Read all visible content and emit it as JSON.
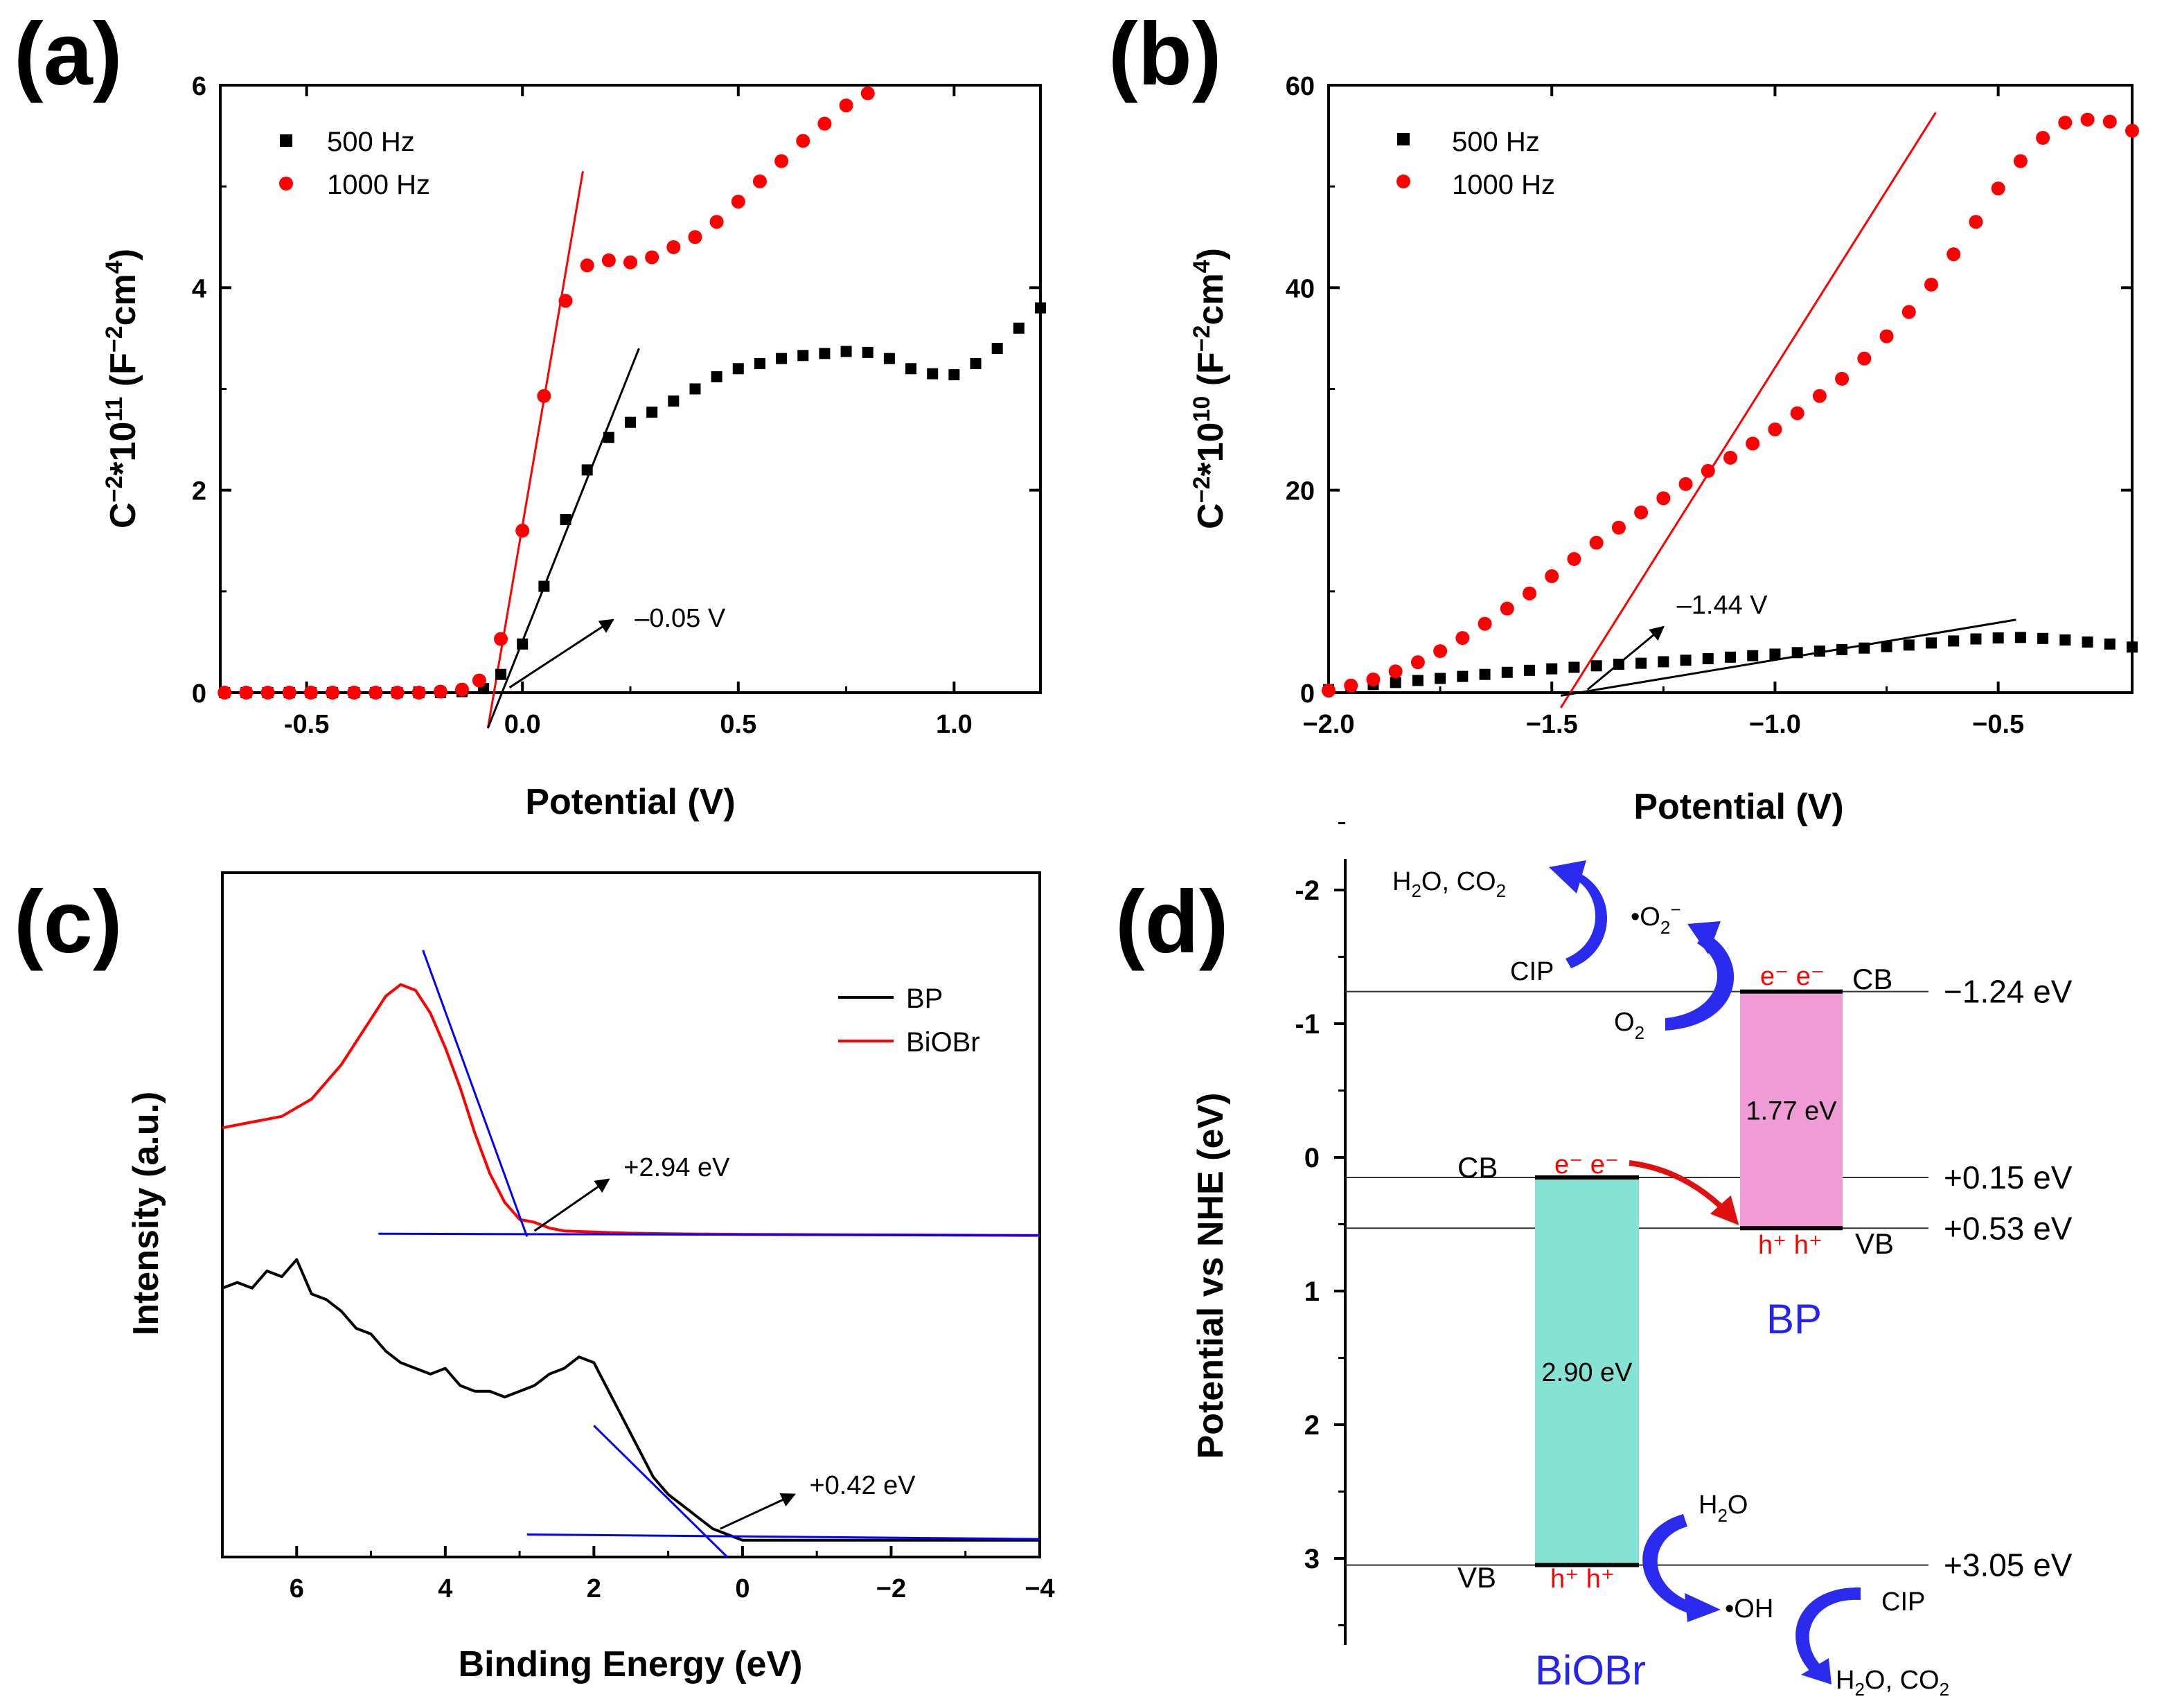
{
  "chart_data": [
    {
      "panel": "(a)",
      "type": "scatter",
      "title": "",
      "xlabel": "Potential (V)",
      "ylabel_parts": [
        "C",
        "−2",
        "*10",
        "11",
        " (F",
        "−2",
        "cm",
        "4",
        ")"
      ],
      "xlim": [
        -0.7,
        1.2
      ],
      "ylim": [
        0,
        6
      ],
      "xticks": [
        -0.5,
        0.0,
        0.5,
        1.0
      ],
      "xtick_labels": [
        "-0.5",
        "0.0",
        "0.5",
        "1.0"
      ],
      "yticks": [
        0,
        2,
        4,
        6
      ],
      "ytick_labels": [
        "0",
        "2",
        "4",
        "6"
      ],
      "legend_position": "top-left",
      "series": [
        {
          "name": "500 Hz",
          "marker": "square",
          "color": "#000000",
          "points": [
            [
              -0.69,
              0.0
            ],
            [
              -0.64,
              0.0
            ],
            [
              -0.59,
              0.0
            ],
            [
              -0.54,
              0.0
            ],
            [
              -0.49,
              0.0
            ],
            [
              -0.44,
              0.0
            ],
            [
              -0.39,
              0.0
            ],
            [
              -0.34,
              0.0
            ],
            [
              -0.29,
              0.0
            ],
            [
              -0.24,
              0.0
            ],
            [
              -0.19,
              0.0
            ],
            [
              -0.14,
              0.01
            ],
            [
              -0.09,
              0.04
            ],
            [
              -0.05,
              0.18
            ],
            [
              0.0,
              0.48
            ],
            [
              0.05,
              1.05
            ],
            [
              0.1,
              1.71
            ],
            [
              0.15,
              2.2
            ],
            [
              0.2,
              2.52
            ],
            [
              0.25,
              2.67
            ],
            [
              0.3,
              2.77
            ],
            [
              0.35,
              2.88
            ],
            [
              0.4,
              3.0
            ],
            [
              0.45,
              3.12
            ],
            [
              0.5,
              3.2
            ],
            [
              0.55,
              3.25
            ],
            [
              0.6,
              3.3
            ],
            [
              0.65,
              3.33
            ],
            [
              0.7,
              3.35
            ],
            [
              0.75,
              3.37
            ],
            [
              0.8,
              3.36
            ],
            [
              0.85,
              3.3
            ],
            [
              0.9,
              3.2
            ],
            [
              0.95,
              3.15
            ],
            [
              1.0,
              3.14
            ],
            [
              1.05,
              3.25
            ],
            [
              1.1,
              3.4
            ],
            [
              1.15,
              3.6
            ],
            [
              1.2,
              3.8
            ]
          ]
        },
        {
          "name": "1000 Hz",
          "marker": "circle",
          "color": "#ff0000",
          "points": [
            [
              -0.69,
              0.0
            ],
            [
              -0.64,
              0.0
            ],
            [
              -0.59,
              0.0
            ],
            [
              -0.54,
              0.0
            ],
            [
              -0.49,
              0.0
            ],
            [
              -0.44,
              0.0
            ],
            [
              -0.39,
              0.0
            ],
            [
              -0.34,
              0.0
            ],
            [
              -0.29,
              0.0
            ],
            [
              -0.24,
              0.0
            ],
            [
              -0.19,
              0.01
            ],
            [
              -0.14,
              0.03
            ],
            [
              -0.1,
              0.12
            ],
            [
              -0.05,
              0.53
            ],
            [
              0.0,
              1.6
            ],
            [
              0.05,
              2.93
            ],
            [
              0.1,
              3.87
            ],
            [
              0.15,
              4.22
            ],
            [
              0.2,
              4.27
            ],
            [
              0.25,
              4.25
            ],
            [
              0.3,
              4.3
            ],
            [
              0.35,
              4.4
            ],
            [
              0.4,
              4.5
            ],
            [
              0.45,
              4.65
            ],
            [
              0.5,
              4.85
            ],
            [
              0.55,
              5.05
            ],
            [
              0.6,
              5.25
            ],
            [
              0.65,
              5.45
            ],
            [
              0.7,
              5.62
            ],
            [
              0.75,
              5.8
            ],
            [
              0.8,
              5.92
            ]
          ]
        }
      ],
      "fit_lines": [
        {
          "color": "#ff0000",
          "x": [
            -0.08,
            0.14
          ],
          "y": [
            -0.35,
            5.15
          ]
        },
        {
          "color": "#000000",
          "x": [
            -0.08,
            0.27
          ],
          "y": [
            -0.35,
            3.4
          ]
        }
      ],
      "annotation": {
        "text": "–0.05 V",
        "arrow_from": [
          -0.03,
          0.05
        ],
        "arrow_to": [
          0.21,
          0.72
        ],
        "text_at": [
          0.26,
          0.72
        ]
      }
    },
    {
      "panel": "(b)",
      "type": "scatter",
      "title": "",
      "xlabel": "Potential (V)",
      "ylabel_parts": [
        "C",
        "−2",
        "*10",
        "10",
        " (F",
        "−2",
        "cm",
        "4",
        ")"
      ],
      "xlim": [
        -2.0,
        -0.2
      ],
      "ylim": [
        0,
        60
      ],
      "xticks": [
        -2.0,
        -1.5,
        -1.0,
        -0.5
      ],
      "xtick_labels": [
        "−2.0",
        "−1.5",
        "−1.0",
        "−0.5"
      ],
      "yticks": [
        0,
        20,
        40,
        60
      ],
      "ytick_labels": [
        "0",
        "20",
        "40",
        "60"
      ],
      "legend_position": "top-left",
      "series": [
        {
          "name": "500 Hz",
          "marker": "square",
          "color": "#000000",
          "points": [
            [
              -2.0,
              0.3
            ],
            [
              -1.95,
              0.5
            ],
            [
              -1.9,
              0.8
            ],
            [
              -1.85,
              1.0
            ],
            [
              -1.8,
              1.2
            ],
            [
              -1.75,
              1.4
            ],
            [
              -1.7,
              1.6
            ],
            [
              -1.65,
              1.8
            ],
            [
              -1.6,
              2.0
            ],
            [
              -1.55,
              2.2
            ],
            [
              -1.5,
              2.35
            ],
            [
              -1.45,
              2.5
            ],
            [
              -1.4,
              2.65
            ],
            [
              -1.35,
              2.8
            ],
            [
              -1.3,
              2.9
            ],
            [
              -1.25,
              3.05
            ],
            [
              -1.2,
              3.2
            ],
            [
              -1.15,
              3.35
            ],
            [
              -1.1,
              3.5
            ],
            [
              -1.05,
              3.65
            ],
            [
              -1.0,
              3.8
            ],
            [
              -0.95,
              3.95
            ],
            [
              -0.9,
              4.1
            ],
            [
              -0.85,
              4.25
            ],
            [
              -0.8,
              4.4
            ],
            [
              -0.75,
              4.55
            ],
            [
              -0.7,
              4.7
            ],
            [
              -0.65,
              4.9
            ],
            [
              -0.6,
              5.1
            ],
            [
              -0.55,
              5.3
            ],
            [
              -0.5,
              5.4
            ],
            [
              -0.45,
              5.45
            ],
            [
              -0.4,
              5.35
            ],
            [
              -0.35,
              5.2
            ],
            [
              -0.3,
              5.0
            ],
            [
              -0.25,
              4.8
            ],
            [
              -0.2,
              4.5
            ]
          ]
        },
        {
          "name": "1000 Hz",
          "marker": "circle",
          "color": "#ff0000",
          "points": [
            [
              -2.0,
              0.2
            ],
            [
              -1.95,
              0.7
            ],
            [
              -1.9,
              1.3
            ],
            [
              -1.85,
              2.1
            ],
            [
              -1.8,
              3.0
            ],
            [
              -1.75,
              4.1
            ],
            [
              -1.7,
              5.4
            ],
            [
              -1.65,
              6.8
            ],
            [
              -1.6,
              8.3
            ],
            [
              -1.55,
              9.8
            ],
            [
              -1.5,
              11.5
            ],
            [
              -1.45,
              13.2
            ],
            [
              -1.4,
              14.8
            ],
            [
              -1.35,
              16.3
            ],
            [
              -1.3,
              17.8
            ],
            [
              -1.25,
              19.2
            ],
            [
              -1.2,
              20.6
            ],
            [
              -1.15,
              21.9
            ],
            [
              -1.1,
              23.2
            ],
            [
              -1.05,
              24.6
            ],
            [
              -1.0,
              26.0
            ],
            [
              -0.95,
              27.6
            ],
            [
              -0.9,
              29.3
            ],
            [
              -0.85,
              31.0
            ],
            [
              -0.8,
              33.0
            ],
            [
              -0.75,
              35.2
            ],
            [
              -0.7,
              37.6
            ],
            [
              -0.65,
              40.3
            ],
            [
              -0.6,
              43.3
            ],
            [
              -0.55,
              46.5
            ],
            [
              -0.5,
              49.8
            ],
            [
              -0.45,
              52.5
            ],
            [
              -0.4,
              54.8
            ],
            [
              -0.35,
              56.3
            ],
            [
              -0.3,
              56.6
            ],
            [
              -0.25,
              56.4
            ],
            [
              -0.2,
              55.5
            ]
          ]
        }
      ],
      "fit_lines": [
        {
          "color": "#ff0000",
          "x": [
            -1.48,
            -0.64
          ],
          "y": [
            -1.5,
            57.3
          ]
        },
        {
          "color": "#000000",
          "x": [
            -1.48,
            -0.46
          ],
          "y": [
            -0.3,
            7.2
          ]
        }
      ],
      "annotation": {
        "text": "–1.44 V",
        "arrow_from": [
          -1.42,
          0.3
        ],
        "arrow_to": [
          -1.25,
          6.5
        ],
        "text_at": [
          -1.22,
          8.5
        ]
      }
    },
    {
      "panel": "(c)",
      "type": "line",
      "title": "",
      "xlabel": "Binding Energy (eV)",
      "ylabel": "Intensity (a.u.)",
      "xlim": [
        7,
        -4
      ],
      "x_reversed": true,
      "ylim": [
        0,
        100
      ],
      "xticks": [
        6,
        4,
        2,
        0,
        -2,
        -4
      ],
      "xtick_labels": [
        "6",
        "4",
        "2",
        "0",
        "−2",
        "−4"
      ],
      "yticks": [],
      "legend_position": "top-right",
      "series": [
        {
          "name": "BP",
          "color": "#000000",
          "x": [
            7.0,
            6.8,
            6.6,
            6.4,
            6.2,
            6.0,
            5.8,
            5.6,
            5.4,
            5.2,
            5.0,
            4.8,
            4.6,
            4.4,
            4.2,
            4.0,
            3.8,
            3.6,
            3.4,
            3.2,
            3.0,
            2.8,
            2.6,
            2.4,
            2.2,
            2.0,
            1.8,
            1.6,
            1.4,
            1.2,
            1.0,
            0.8,
            0.6,
            0.4,
            0.2,
            0.0,
            -0.5,
            -1.0,
            -2.0,
            -3.0,
            -4.0
          ],
          "y": [
            45,
            46,
            45,
            48,
            47,
            50,
            44,
            43,
            41,
            38,
            37,
            34,
            32,
            31,
            30,
            31,
            28,
            27,
            27,
            26,
            27,
            28,
            30,
            31,
            33,
            32,
            27,
            22,
            17,
            12,
            9,
            7,
            5,
            3,
            2,
            1,
            1,
            1,
            1,
            1,
            1
          ]
        },
        {
          "name": "BiOBr",
          "color": "#ff0000",
          "x": [
            7.0,
            6.6,
            6.2,
            5.8,
            5.4,
            5.2,
            5.0,
            4.8,
            4.6,
            4.4,
            4.2,
            4.0,
            3.8,
            3.6,
            3.4,
            3.2,
            3.0,
            2.8,
            2.6,
            2.4,
            2.0,
            1.5,
            1.0,
            0.0,
            -2.0,
            -4.0
          ],
          "y": [
            73,
            74,
            75,
            78,
            84,
            88,
            92,
            96,
            98,
            97,
            93,
            87,
            80,
            72,
            65,
            60,
            57,
            56.5,
            55.5,
            55,
            54.8,
            54.6,
            54.5,
            54.4,
            54.3,
            54.2
          ]
        }
      ],
      "fit_lines": [
        {
          "color": "#0000ff",
          "x": [
            4.3,
            2.9
          ],
          "y": [
            104,
            54
          ]
        },
        {
          "color": "#0000ff",
          "x": [
            4.9,
            -4.0
          ],
          "y": [
            54.5,
            54.2
          ]
        },
        {
          "color": "#0000ff",
          "x": [
            2.0,
            0.2
          ],
          "y": [
            21,
            -2
          ]
        },
        {
          "color": "#0000ff",
          "x": [
            2.9,
            -4.0
          ],
          "y": [
            2,
            1.2
          ]
        }
      ],
      "annotations": [
        {
          "text": "+2.94 eV",
          "arrow_from": [
            2.8,
            55
          ],
          "arrow_to": [
            1.8,
            64
          ],
          "text_at": [
            1.6,
            66
          ]
        },
        {
          "text": "+0.42 eV",
          "arrow_from": [
            0.3,
            3
          ],
          "arrow_to": [
            -0.7,
            9
          ],
          "text_at": [
            -0.9,
            10.5
          ]
        }
      ]
    },
    {
      "panel": "(d)",
      "type": "diagram",
      "ylabel": "Potential vs NHE (eV)",
      "ylim": [
        -2.3,
        3.6
      ],
      "y_inverted": true,
      "yticks": [
        -2,
        -1,
        0,
        1,
        2,
        3
      ],
      "ytick_labels": [
        "-2",
        "-1",
        "0",
        "1",
        "2",
        "3"
      ],
      "levels": [
        {
          "value": -1.24,
          "label": "−1.24 eV"
        },
        {
          "value": 0.15,
          "label": "+0.15 eV"
        },
        {
          "value": 0.53,
          "label": "+0.53 eV"
        },
        {
          "value": 3.05,
          "label": "+3.05 eV"
        }
      ],
      "bands": [
        {
          "name": "BP",
          "cb": -1.24,
          "vb": 0.53,
          "gap_label": "1.77 eV",
          "color": "#ef9bd6",
          "name_color": "#2424ee"
        },
        {
          "name": "BiOBr",
          "cb": 0.15,
          "vb": 3.05,
          "gap_label": "2.90 eV",
          "color": "#86e3d4",
          "name_color": "#2424ee"
        }
      ],
      "labels": {
        "cb": "CB",
        "vb": "VB",
        "electrons": "e⁻ e⁻",
        "holes": "h⁺ h⁺",
        "h2o_co2_prefix": "H",
        "h2o_co2_mid": "O, CO",
        "sub_2": "2",
        "superoxide_base": "•O",
        "superoxide_charge": "−",
        "o2_base": "O",
        "cip": "CIP",
        "h2o_base": "H",
        "h2o_tail": "O",
        "hydroxyl": "•OH"
      },
      "colors": {
        "electron": "#ff0000",
        "arrow": "#2b2bf0",
        "transfer_arrow": "#e01010"
      }
    }
  ]
}
